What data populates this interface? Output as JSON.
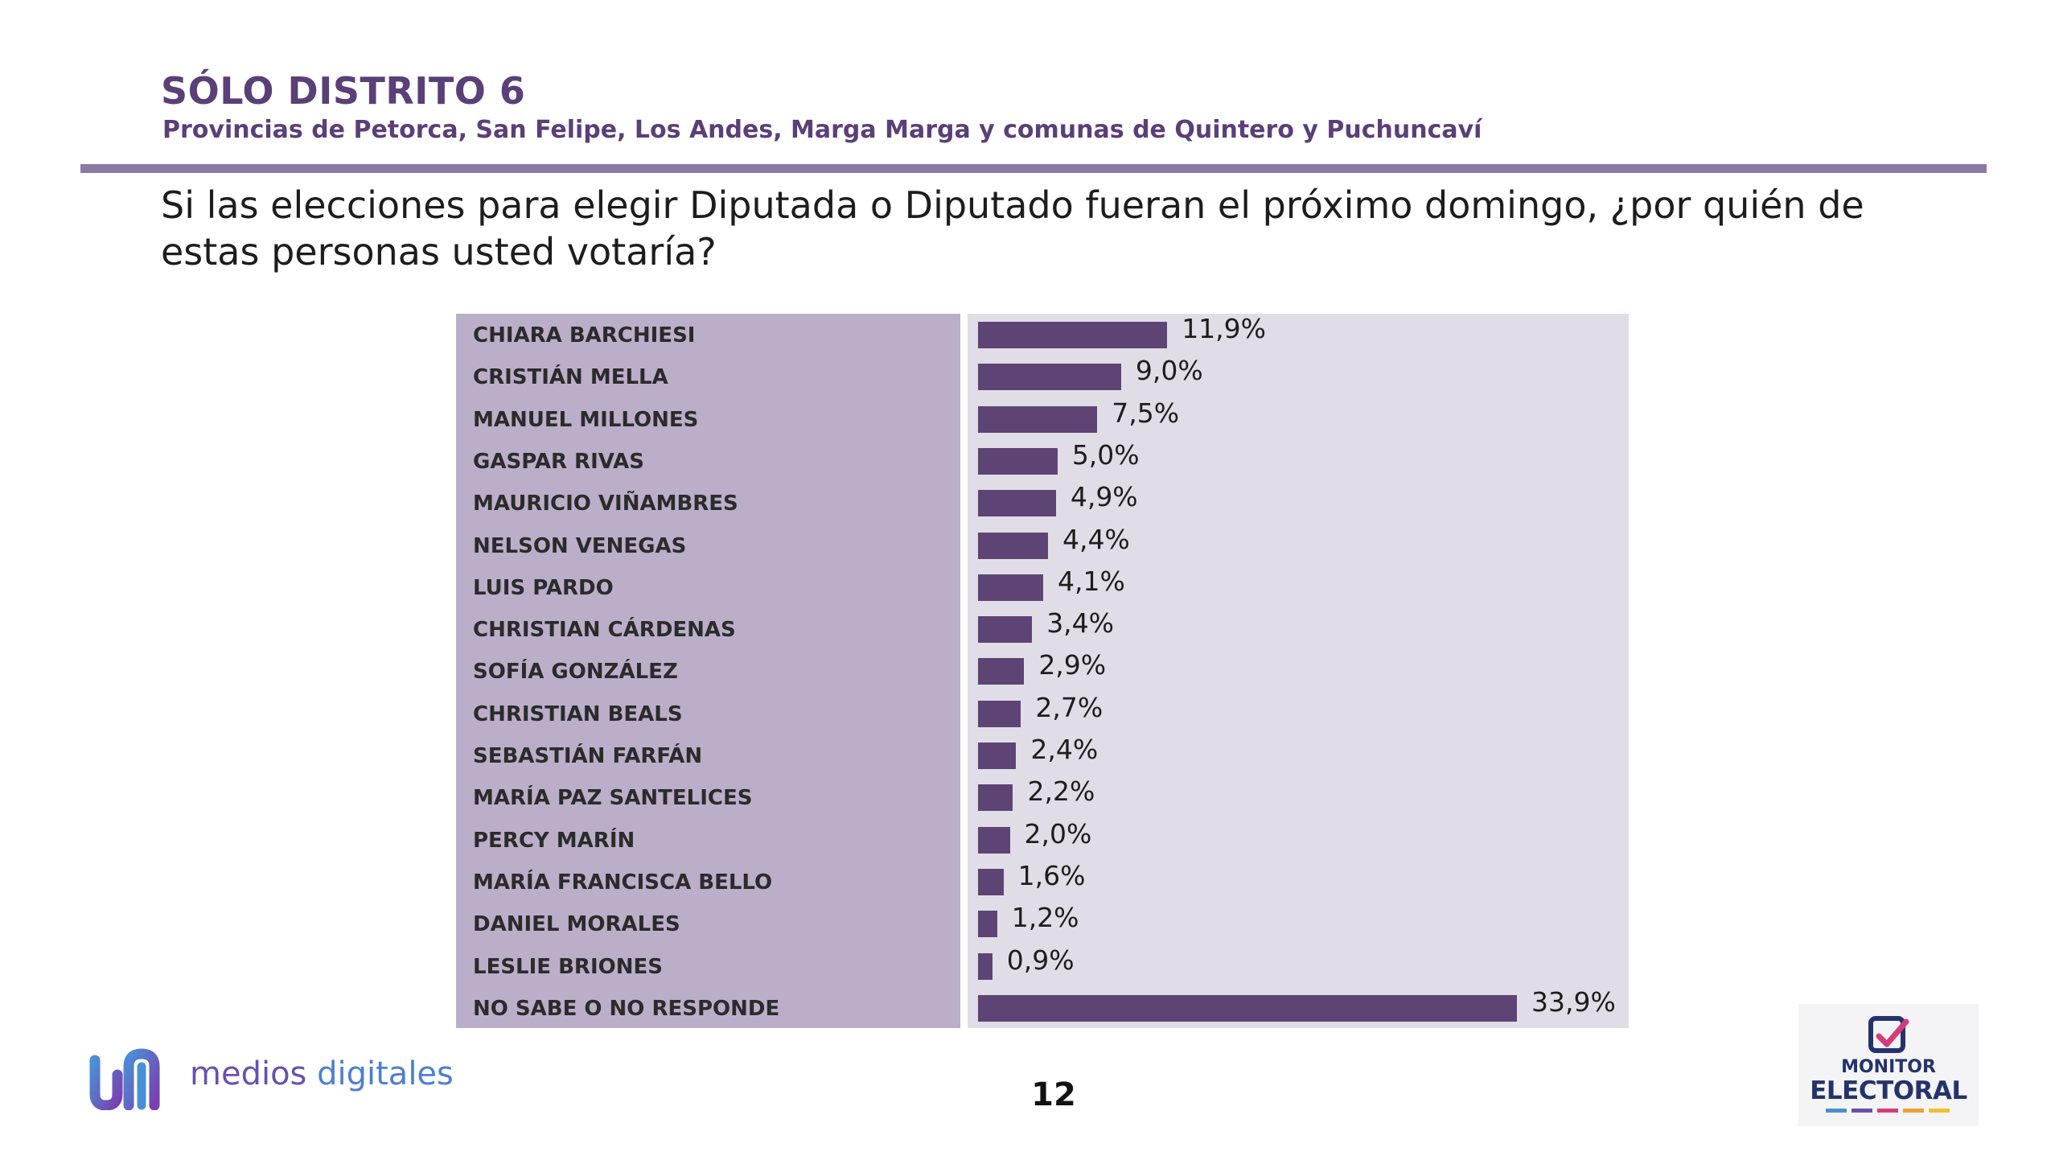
{
  "header": {
    "title": "SÓLO DISTRITO 6",
    "subtitle": "Provincias de Petorca, San Felipe, Los Andes, Marga Marga y comunas de Quintero y Puchuncaví"
  },
  "question": "Si las elecciones para elegir Diputada o Diputado fueran el próximo domingo, ¿por quién de estas personas usted votaría?",
  "chart_data": {
    "type": "bar",
    "orientation": "horizontal",
    "categories": [
      "CHIARA BARCHIESI",
      "CRISTIÁN MELLA",
      "MANUEL MILLONES",
      "GASPAR RIVAS",
      "MAURICIO VIÑAMBRES",
      "NELSON VENEGAS",
      "LUIS PARDO",
      "CHRISTIAN CÁRDENAS",
      "SOFÍA GONZÁLEZ",
      "CHRISTIAN BEALS",
      "SEBASTIÁN FARFÁN",
      "MARÍA PAZ SANTELICES",
      "PERCY MARÍN",
      "MARÍA FRANCISCA BELLO",
      "DANIEL MORALES",
      "LESLIE BRIONES",
      "NO SABE O NO RESPONDE"
    ],
    "values": [
      11.9,
      9.0,
      7.5,
      5.0,
      4.9,
      4.4,
      4.1,
      3.4,
      2.9,
      2.7,
      2.4,
      2.2,
      2.0,
      1.6,
      1.2,
      0.9,
      33.9
    ],
    "value_labels": [
      "11,9%",
      "9,0%",
      "7,5%",
      "5,0%",
      "4,9%",
      "4,4%",
      "4,1%",
      "3,4%",
      "2,9%",
      "2,7%",
      "2,4%",
      "2,2%",
      "2,0%",
      "1,6%",
      "1,2%",
      "0,9%",
      "33,9%"
    ],
    "unit": "%",
    "bar_color": "#5e4475",
    "grid": false
  },
  "footer": {
    "brand_text_1": "medios",
    "brand_text_2": "digitales",
    "page_number": "12",
    "monitor_line1": "MONITOR",
    "monitor_line2": "ELECTORAL"
  },
  "colors": {
    "title": "#5b3f78",
    "rule": "#8c7aa6",
    "label_panel": "#bbaec9",
    "chart_panel": "#e1dde6",
    "bar": "#5e4475"
  }
}
